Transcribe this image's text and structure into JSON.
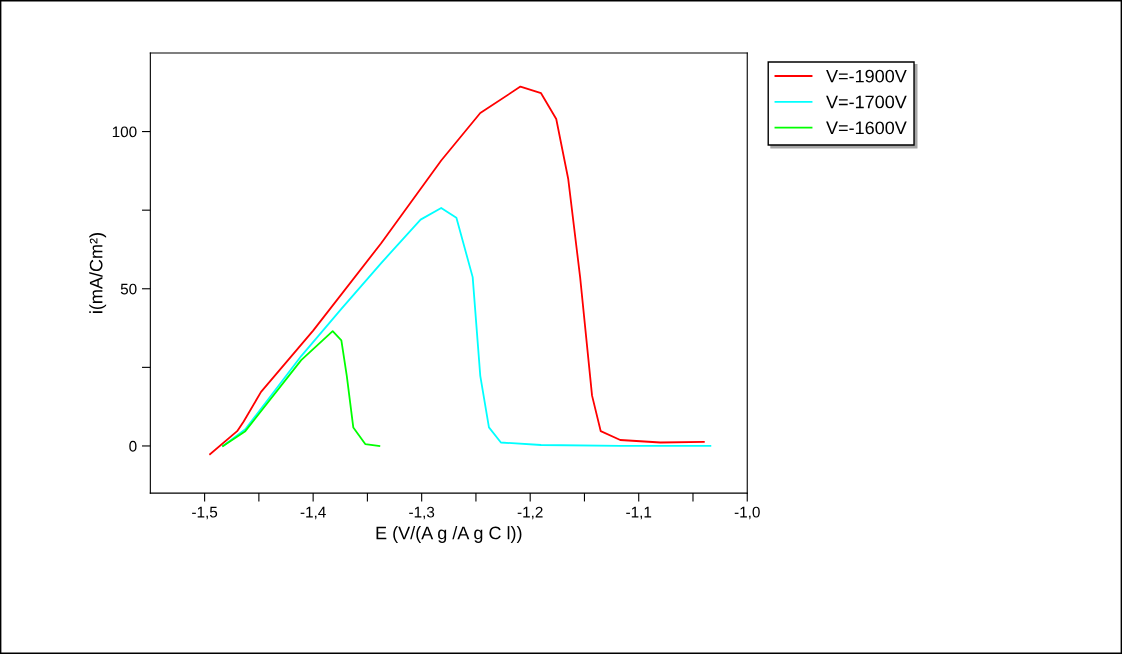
{
  "chart_data": {
    "type": "line",
    "xlabel": "E (V/(A g /A g C l))",
    "ylabel": "i(mA/Cm²)",
    "xlim": [
      -1.55,
      -1.0
    ],
    "ylim": [
      -15,
      125
    ],
    "xticks": [
      {
        "value": -1.5,
        "label": "-1,5"
      },
      {
        "value": -1.45,
        "label": null
      },
      {
        "value": -1.4,
        "label": "-1,4"
      },
      {
        "value": -1.35,
        "label": null
      },
      {
        "value": -1.3,
        "label": "-1,3"
      },
      {
        "value": -1.25,
        "label": null
      },
      {
        "value": -1.2,
        "label": "-1,2"
      },
      {
        "value": -1.15,
        "label": null
      },
      {
        "value": -1.1,
        "label": "-1,1"
      },
      {
        "value": -1.05,
        "label": null
      },
      {
        "value": -1.0,
        "label": "-1,0"
      }
    ],
    "yticks": [
      0,
      {
        "value": 25,
        "label": null
      },
      50,
      {
        "value": 75,
        "label": null
      },
      100
    ],
    "grid": false,
    "legend": "top right",
    "marker": "none",
    "line_style": "solid",
    "series": [
      {
        "name": "V=-1900V",
        "color": "#ff0000",
        "x": [
          -1.495,
          -1.47,
          -1.464,
          -1.448,
          -1.4,
          -1.3375,
          -1.282,
          -1.246,
          -1.209,
          -1.19,
          -1.176,
          -1.165,
          -1.154,
          -1.143,
          -1.135,
          -1.117,
          -1.08,
          -1.04
        ],
        "values": [
          -2.6,
          4.7,
          7.8,
          17.2,
          36.7,
          64.4,
          90.8,
          105.9,
          114.3,
          112.2,
          104,
          85,
          53.7,
          16,
          4.7,
          1.9,
          1.1,
          1.3
        ]
      },
      {
        "name": "V=-1700V",
        "color": "#00ffff",
        "x": [
          -1.483,
          -1.4625,
          -1.411,
          -1.374,
          -1.3375,
          -1.301,
          -1.282,
          -1.268,
          -1.253,
          -1.246,
          -1.238,
          -1.227,
          -1.19,
          -1.117,
          -1.034
        ],
        "values": [
          0,
          5.3,
          28.6,
          43.6,
          58.1,
          72,
          75.7,
          72.6,
          53.7,
          22.3,
          5.9,
          1.1,
          0.3,
          0,
          0
        ]
      },
      {
        "name": "V=-1600V",
        "color": "#00ff00",
        "x": [
          -1.483,
          -1.4625,
          -1.411,
          -1.382,
          -1.374,
          -1.369,
          -1.363,
          -1.352,
          -1.339
        ],
        "values": [
          0,
          4.7,
          27.3,
          36.5,
          33.6,
          22.3,
          5.9,
          0.6,
          0
        ]
      }
    ]
  }
}
